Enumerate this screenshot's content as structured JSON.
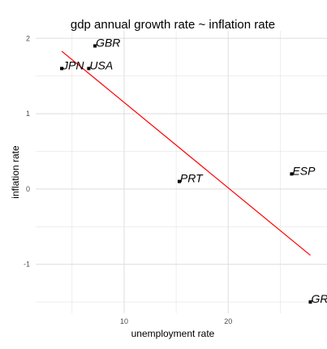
{
  "chart_data": {
    "type": "scatter",
    "title": "gdp annual growth rate ~ inflation rate",
    "xlabel": "unemployment rate",
    "ylabel": "inflation rate",
    "xlim": [
      1.5,
      29.5
    ],
    "ylim": [
      -1.65,
      2.1
    ],
    "xticks": [
      10,
      20
    ],
    "xtick_labels": [
      "10",
      "20"
    ],
    "yticks": [
      -1,
      0,
      1,
      2
    ],
    "ytick_labels": [
      "-1",
      "0",
      "1",
      "2"
    ],
    "grid": true,
    "points": [
      {
        "label": "GBR",
        "x": 7.2,
        "y": 1.9
      },
      {
        "label": "JPN",
        "x": 4.0,
        "y": 1.6
      },
      {
        "label": "USA",
        "x": 6.6,
        "y": 1.6
      },
      {
        "label": "PRT",
        "x": 15.3,
        "y": 0.1
      },
      {
        "label": "ESP",
        "x": 26.1,
        "y": 0.2
      },
      {
        "label": "GRC",
        "x": 27.9,
        "y": -1.5
      }
    ],
    "trend_line": {
      "x": [
        4.0,
        27.9
      ],
      "y": [
        1.83,
        -0.88
      ],
      "color": "#ff0000"
    },
    "colors": {
      "grid": "#dedede",
      "point": "#000000",
      "trend": "#ff0000"
    }
  }
}
